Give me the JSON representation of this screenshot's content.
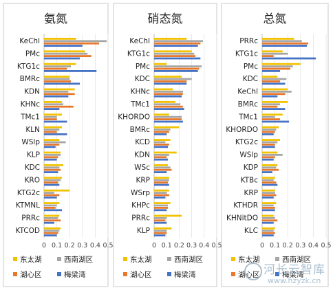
{
  "legend": [
    {
      "name": "东太湖",
      "color": "#f2c200"
    },
    {
      "name": "西南湖区",
      "color": "#a6a6a6"
    },
    {
      "name": "湖心区",
      "color": "#e8782a"
    },
    {
      "name": "梅梁湾",
      "color": "#4472c4"
    }
  ],
  "watermark": {
    "text": "河长云智库",
    "url": "www.hzyzk.cn"
  },
  "chart_data": [
    {
      "type": "bar",
      "orientation": "horizontal",
      "title": "氨氮",
      "categories": [
        "KeChl",
        "PMc",
        "KTG1c",
        "BMRc",
        "KDN",
        "KHNc",
        "TMc1",
        "KLN",
        "WSlp",
        "KLP",
        "KDC",
        "KRO",
        "KTG2c",
        "KTMNL",
        "PRRc",
        "KTCOD"
      ],
      "series": [
        {
          "name": "东太湖",
          "values": [
            0.25,
            0.32,
            0.25,
            0.2,
            0.24,
            0.14,
            0.14,
            0.14,
            0.12,
            0.13,
            0.15,
            0.14,
            0.2,
            0.12,
            0.12,
            0.13
          ]
        },
        {
          "name": "西南湖区",
          "values": [
            0.49,
            0.34,
            0.21,
            0.2,
            0.19,
            0.15,
            0.1,
            0.12,
            0.17,
            0.13,
            0.12,
            0.13,
            0.08,
            0.1,
            0.11,
            0.12
          ]
        },
        {
          "name": "湖心区",
          "values": [
            0.43,
            0.37,
            0.18,
            0.21,
            0.24,
            0.23,
            0.1,
            0.1,
            0.12,
            0.11,
            0.13,
            0.11,
            0.12,
            0.09,
            0.13,
            0.11
          ]
        },
        {
          "name": "梅梁湾",
          "values": [
            0.3,
            0.28,
            0.41,
            0.28,
            0.19,
            0.12,
            0.18,
            0.18,
            0.09,
            0.1,
            0.11,
            0.12,
            0.1,
            0.14,
            0.08,
            0.1
          ]
        }
      ],
      "xlim": [
        0,
        0.5
      ],
      "xticks": [
        0,
        0.1,
        0.2,
        0.3,
        0.4,
        0.5
      ]
    },
    {
      "type": "bar",
      "orientation": "horizontal",
      "title": "硝态氮",
      "categories": [
        "KeChl",
        "KTG1c",
        "PMc",
        "KDC",
        "KHNc",
        "TMc1",
        "KHORDO",
        "BMRc",
        "KCD",
        "KDN",
        "WSc",
        "KRP",
        "WSrp",
        "KHPc",
        "PRRc",
        "KLP"
      ],
      "series": [
        {
          "name": "东太湖",
          "values": [
            0.26,
            0.3,
            0.1,
            0.22,
            0.15,
            0.17,
            0.12,
            0.2,
            0.13,
            0.18,
            0.11,
            0.12,
            0.12,
            0.13,
            0.22,
            0.14
          ]
        },
        {
          "name": "西南湖区",
          "values": [
            0.39,
            0.32,
            0.38,
            0.3,
            0.23,
            0.21,
            0.22,
            0.13,
            0.09,
            0.12,
            0.13,
            0.12,
            0.1,
            0.11,
            0.1,
            0.1
          ]
        },
        {
          "name": "湖心区",
          "values": [
            0.37,
            0.33,
            0.36,
            0.26,
            0.23,
            0.23,
            0.22,
            0.12,
            0.12,
            0.1,
            0.14,
            0.11,
            0.12,
            0.11,
            0.09,
            0.1
          ]
        },
        {
          "name": "梅梁湾",
          "values": [
            0.35,
            0.37,
            0.35,
            0.26,
            0.22,
            0.24,
            0.23,
            0.1,
            0.11,
            0.11,
            0.1,
            0.12,
            0.09,
            0.1,
            0.1,
            0.09
          ]
        }
      ],
      "xlim": [
        0,
        0.5
      ],
      "xticks": [
        0,
        0.1,
        0.2,
        0.3,
        0.4,
        0.5
      ]
    },
    {
      "type": "bar",
      "orientation": "horizontal",
      "title": "总氮",
      "categories": [
        "PRRc",
        "KTG1c",
        "PMc",
        "KDC",
        "KeChl",
        "BMRc",
        "TMc1",
        "KHORDO",
        "KTG2c",
        "WSlp",
        "KDP",
        "KTBc",
        "KRP",
        "KTHDR",
        "KHNitDO",
        "KLC"
      ],
      "series": [
        {
          "name": "东太湖",
          "values": [
            0.25,
            0.16,
            0.3,
            0.12,
            0.2,
            0.2,
            0.16,
            0.13,
            0.14,
            0.12,
            0.12,
            0.1,
            0.1,
            0.11,
            0.09,
            0.1
          ]
        },
        {
          "name": "西南湖区",
          "values": [
            0.31,
            0.2,
            0.24,
            0.19,
            0.23,
            0.14,
            0.1,
            0.11,
            0.12,
            0.16,
            0.11,
            0.09,
            0.1,
            0.09,
            0.1,
            0.09
          ]
        },
        {
          "name": "湖心区",
          "values": [
            0.36,
            0.09,
            0.22,
            0.14,
            0.18,
            0.12,
            0.14,
            0.1,
            0.1,
            0.1,
            0.13,
            0.11,
            0.11,
            0.1,
            0.12,
            0.1
          ]
        },
        {
          "name": "梅梁湾",
          "values": [
            0.35,
            0.42,
            0.14,
            0.18,
            0.12,
            0.18,
            0.21,
            0.09,
            0.1,
            0.09,
            0.08,
            0.12,
            0.09,
            0.1,
            0.09,
            0.09
          ]
        }
      ],
      "xlim": [
        0,
        0.5
      ],
      "xticks": [
        0,
        0.1,
        0.2,
        0.3,
        0.4,
        0.5
      ]
    }
  ]
}
